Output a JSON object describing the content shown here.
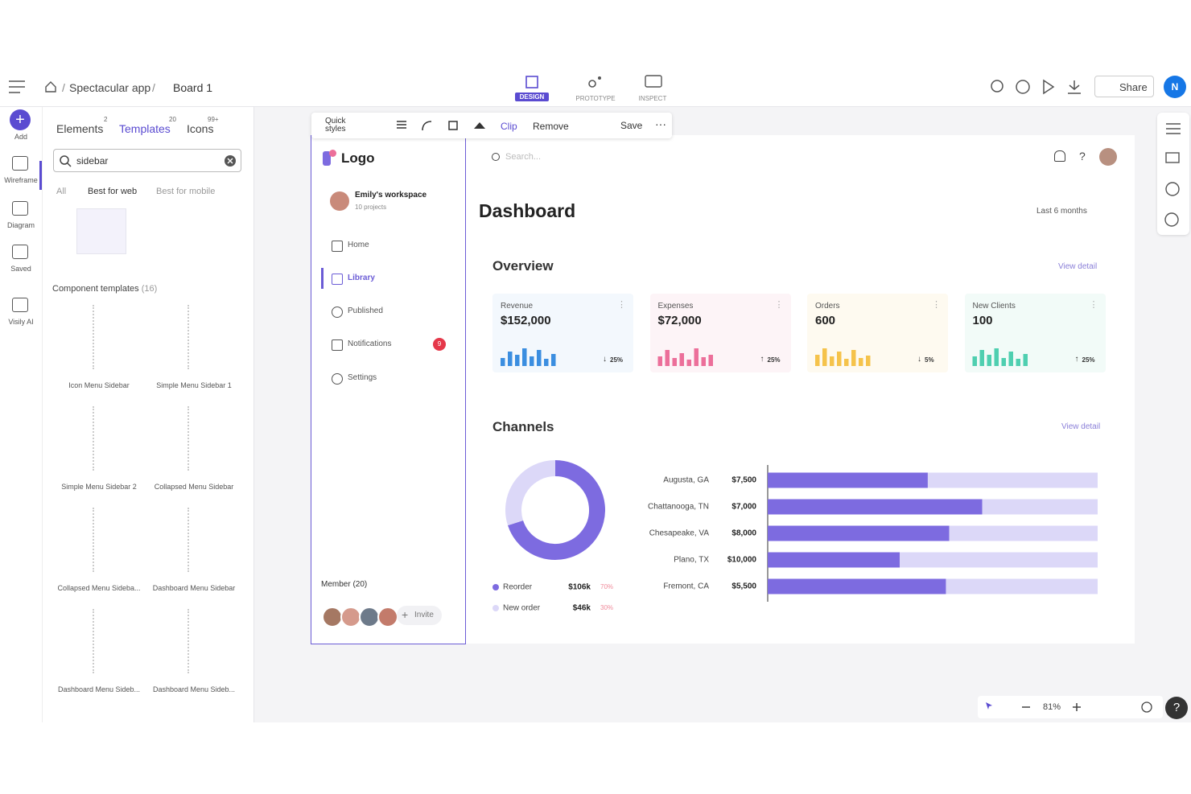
{
  "header": {
    "breadcrumb": [
      "Spectacular app",
      "Board 1"
    ],
    "modes": [
      "DESIGN",
      "PROTOTYPE",
      "INSPECT"
    ],
    "share": "Share",
    "avatar": "N"
  },
  "rail": [
    "Add",
    "Wireframe",
    "Diagram",
    "Saved",
    "Visily AI"
  ],
  "panel": {
    "tabs": [
      {
        "label": "Elements",
        "count": "2"
      },
      {
        "label": "Templates",
        "count": "20"
      },
      {
        "label": "Icons",
        "count": "99+"
      }
    ],
    "search": "sidebar",
    "filters": [
      "All",
      "Best for web",
      "Best for mobile"
    ],
    "section": "Component templates",
    "section_count": "(16)",
    "templates": [
      "Icon Menu Sidebar",
      "Simple Menu Sidebar 1",
      "Simple Menu Sidebar 2",
      "Collapsed Menu Sidebar",
      "Collapsed Menu Sideba...",
      "Dashboard Menu Sidebar",
      "Dashboard Menu Sideb...",
      "Dashboard Menu Sideb..."
    ]
  },
  "toolbar": {
    "quick": "Quick styles",
    "clip": "Clip",
    "remove": "Remove",
    "save": "Save"
  },
  "sidebar": {
    "logo": "Logo",
    "workspace": "Emily's workspace",
    "projects": "10 projects",
    "nav": [
      "Home",
      "Library",
      "Published",
      "Notifications",
      "Settings"
    ],
    "badge": "9",
    "members": "Member (20)",
    "invite": "Invite"
  },
  "dashboard": {
    "search": "Search...",
    "title": "Dashboard",
    "range": "Last 6 months",
    "overview": "Overview",
    "view_detail": "View detail",
    "cards": [
      {
        "label": "Revenue",
        "value": "$152,000",
        "change": "25%",
        "dir": "down",
        "color": "#3b8ee0",
        "bg": "#f3f8fd",
        "bars": [
          10,
          18,
          14,
          22,
          12,
          20,
          9,
          15
        ]
      },
      {
        "label": "Expenses",
        "value": "$72,000",
        "change": "25%",
        "dir": "up",
        "color": "#ec6f9a",
        "bg": "#fdf4f7",
        "bars": [
          12,
          20,
          10,
          16,
          8,
          22,
          11,
          14
        ]
      },
      {
        "label": "Orders",
        "value": "600",
        "change": "5%",
        "dir": "down",
        "color": "#f5c34b",
        "bg": "#fefaf0",
        "bars": [
          14,
          22,
          12,
          18,
          9,
          20,
          10,
          13
        ]
      },
      {
        "label": "New Clients",
        "value": "100",
        "change": "25%",
        "dir": "up",
        "color": "#4fcfb0",
        "bg": "#f2fbf8",
        "bars": [
          12,
          20,
          14,
          22,
          10,
          18,
          9,
          15
        ]
      }
    ],
    "channels": "Channels",
    "donut": [
      {
        "name": "Reorder",
        "amount": "$106k",
        "share": 70,
        "share_label": "70%",
        "color": "#7d6be0"
      },
      {
        "name": "New order",
        "amount": "$46k",
        "share": 30,
        "share_label": "30%",
        "color": "#dcd8f8"
      }
    ],
    "cities": [
      {
        "name": "Augusta, GA",
        "amount": "$7,500",
        "fill": 48.5
      },
      {
        "name": "Chattanooga, TN",
        "amount": "$7,000",
        "fill": 65
      },
      {
        "name": "Chesapeake, VA",
        "amount": "$8,000",
        "fill": 55
      },
      {
        "name": "Plano, TX",
        "amount": "$10,000",
        "fill": 40
      },
      {
        "name": "Fremont, CA",
        "amount": "$5,500",
        "fill": 54
      }
    ]
  },
  "zoom": "81%"
}
